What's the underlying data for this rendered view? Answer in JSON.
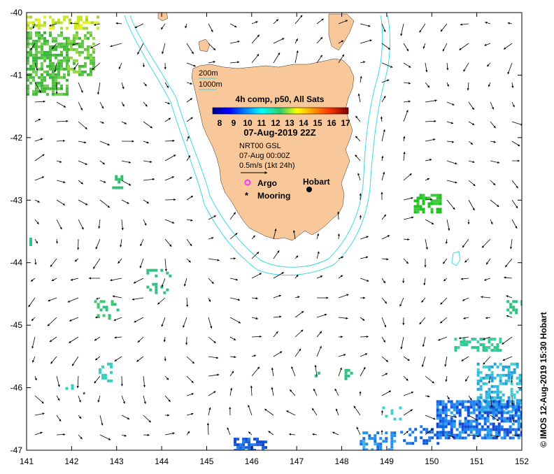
{
  "map": {
    "lon_ticks": [
      "141",
      "142",
      "143",
      "144",
      "145",
      "146",
      "147",
      "148",
      "149",
      "150",
      "151",
      "152"
    ],
    "lat_ticks": [
      "-40",
      "-41",
      "-42",
      "-43",
      "-44",
      "-45",
      "-46",
      "-47"
    ],
    "lon_range": [
      141,
      152
    ],
    "lat_range": [
      -47,
      -40
    ],
    "land_color": "#f9c89a",
    "isobath_color": "#3fd8e6",
    "current_arrow_color": "#000000"
  },
  "legend": {
    "isobath_200": "200m",
    "isobath_1000": "1000m",
    "product_title": "4h comp, p50, All Sats",
    "colorbar_ticks": [
      "8",
      "9",
      "10",
      "11",
      "12",
      "13",
      "14",
      "15",
      "16",
      "17"
    ],
    "colorbar_range": [
      8,
      17
    ],
    "date_title": "07-Aug-2019 22Z",
    "current_source": "NRT00 GSL",
    "current_date": "07-Aug 00:00Z",
    "scale_label": "0.5m/s (1kt 24h)",
    "argo_label": "Argo",
    "mooring_label": "Mooring",
    "argo_color": "#ff33ff"
  },
  "places": {
    "hobart_label": "Hobart"
  },
  "credit": "© IMOS 12-Aug-2019 15:30 Hobart"
}
